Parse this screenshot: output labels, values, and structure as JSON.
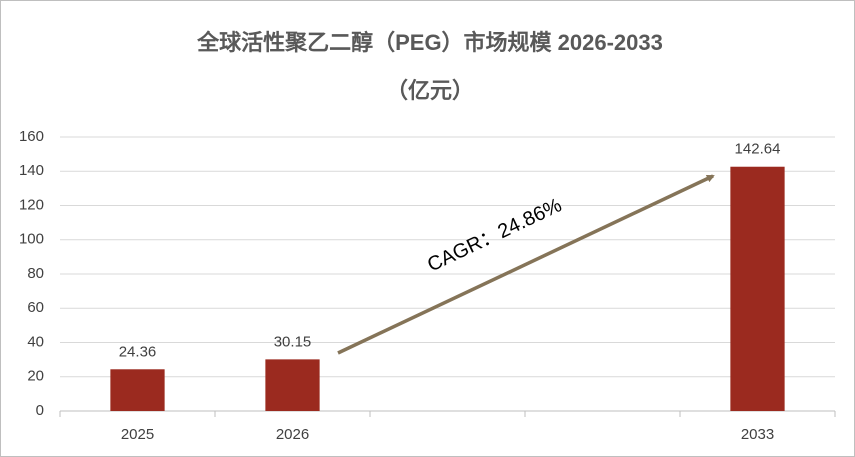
{
  "chart_data": {
    "type": "bar",
    "title": "全球活性聚乙二醇（PEG）市场规模 2026-2033",
    "subtitle": "（亿元）",
    "categories": [
      "2025",
      "2026",
      null,
      null,
      "2033"
    ],
    "values": [
      24.36,
      30.15,
      null,
      null,
      142.64
    ],
    "color": "#9b2a1f",
    "ylim": [
      0,
      160
    ],
    "yticks": [
      0,
      20,
      40,
      60,
      80,
      100,
      120,
      140,
      160
    ],
    "grid": true,
    "annotation": "CAGR：24.86%"
  }
}
